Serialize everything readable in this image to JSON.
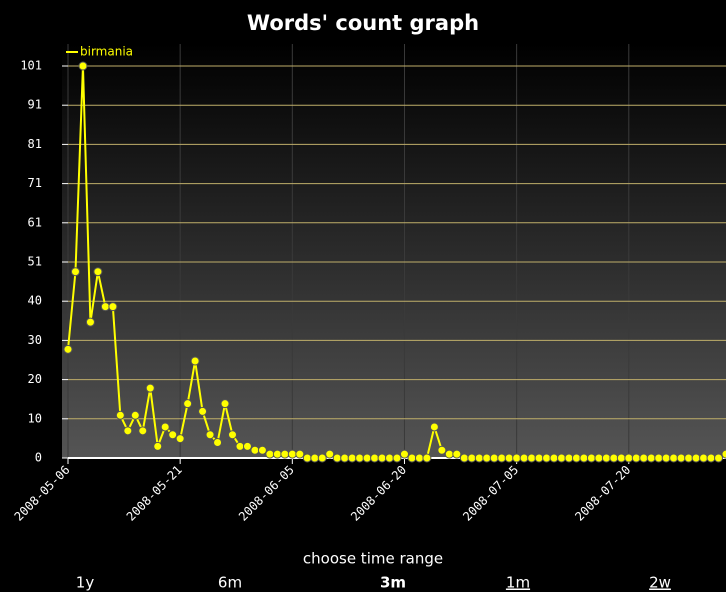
{
  "chart_data": {
    "type": "line",
    "title": "Words' count graph",
    "x": [
      "2008-05-06",
      "2008-05-07",
      "2008-05-08",
      "2008-05-09",
      "2008-05-10",
      "2008-05-11",
      "2008-05-12",
      "2008-05-13",
      "2008-05-14",
      "2008-05-15",
      "2008-05-16",
      "2008-05-17",
      "2008-05-18",
      "2008-05-19",
      "2008-05-20",
      "2008-05-21",
      "2008-05-22",
      "2008-05-23",
      "2008-05-24",
      "2008-05-25",
      "2008-05-26",
      "2008-05-27",
      "2008-05-28",
      "2008-05-29",
      "2008-05-30",
      "2008-05-31",
      "2008-06-01",
      "2008-06-02",
      "2008-06-03",
      "2008-06-04",
      "2008-06-05",
      "2008-06-06",
      "2008-06-07",
      "2008-06-08",
      "2008-06-09",
      "2008-06-10",
      "2008-06-11",
      "2008-06-12",
      "2008-06-13",
      "2008-06-14",
      "2008-06-15",
      "2008-06-16",
      "2008-06-17",
      "2008-06-18",
      "2008-06-19",
      "2008-06-20",
      "2008-06-21",
      "2008-06-22",
      "2008-06-23",
      "2008-06-24",
      "2008-06-25",
      "2008-06-26",
      "2008-06-27",
      "2008-06-28",
      "2008-06-29",
      "2008-06-30",
      "2008-07-01",
      "2008-07-02",
      "2008-07-03",
      "2008-07-04",
      "2008-07-05",
      "2008-07-06",
      "2008-07-07",
      "2008-07-08",
      "2008-07-09",
      "2008-07-10",
      "2008-07-11",
      "2008-07-12",
      "2008-07-13",
      "2008-07-14",
      "2008-07-15",
      "2008-07-16",
      "2008-07-17",
      "2008-07-18",
      "2008-07-19",
      "2008-07-20",
      "2008-07-21",
      "2008-07-22",
      "2008-07-23",
      "2008-07-24",
      "2008-07-25",
      "2008-07-26",
      "2008-07-27",
      "2008-07-28",
      "2008-07-29",
      "2008-07-30",
      "2008-07-31",
      "2008-08-01",
      "2008-08-02"
    ],
    "series": [
      {
        "name": "birmania",
        "color": "#ffff00",
        "values": [
          28,
          48,
          101,
          35,
          48,
          39,
          39,
          11,
          7,
          11,
          7,
          18,
          3,
          8,
          6,
          5,
          14,
          25,
          12,
          6,
          4,
          14,
          6,
          3,
          3,
          2,
          2,
          1,
          1,
          1,
          1,
          1,
          0,
          0,
          0,
          1,
          0,
          0,
          0,
          0,
          0,
          0,
          0,
          0,
          0,
          1,
          0,
          0,
          0,
          8,
          2,
          1,
          1,
          0,
          0,
          0,
          0,
          0,
          0,
          0,
          0,
          0,
          0,
          0,
          0,
          0,
          0,
          0,
          0,
          0,
          0,
          0,
          0,
          0,
          0,
          0,
          0,
          0,
          0,
          0,
          0,
          0,
          0,
          0,
          0,
          0,
          0,
          0,
          1
        ]
      }
    ],
    "xlim": [
      "2008-05-06",
      "2008-08-02"
    ],
    "xticks": [
      "2008-05-06",
      "2008-05-21",
      "2008-06-05",
      "2008-06-20",
      "2008-07-05",
      "2008-07-20"
    ],
    "ylim": [
      0,
      101
    ],
    "yticks": [
      0,
      {
        "value": 10.1,
        "label": "10"
      },
      {
        "value": 20.2,
        "label": "20"
      },
      {
        "value": 30.3,
        "label": "30"
      },
      {
        "value": 40.4,
        "label": "40"
      },
      {
        "value": 50.5,
        "label": "51"
      },
      {
        "value": 60.6,
        "label": "61"
      },
      {
        "value": 70.7,
        "label": "71"
      },
      {
        "value": 80.8,
        "label": "81"
      },
      {
        "value": 90.9,
        "label": "91"
      },
      101
    ],
    "grid": true
  },
  "time_range": {
    "label": "choose time range",
    "options": [
      "1y",
      "6m",
      "3m",
      "1m",
      "2w"
    ]
  }
}
